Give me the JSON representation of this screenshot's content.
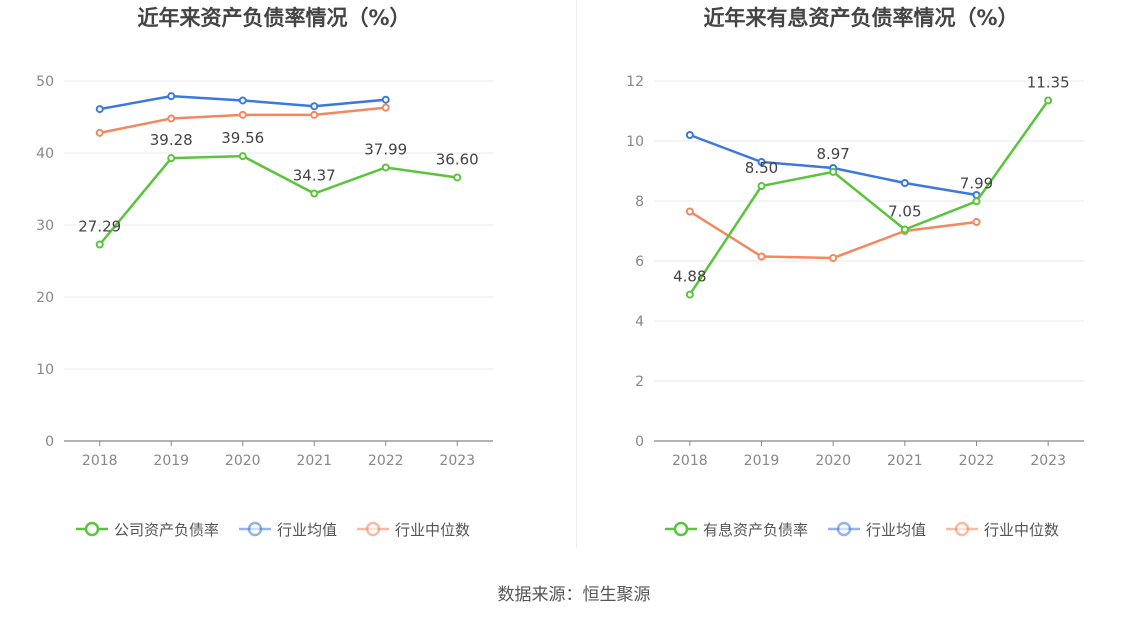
{
  "chart_data": [
    {
      "type": "line",
      "title": "近年来资产负债率情况（%）",
      "categories": [
        "2018",
        "2019",
        "2020",
        "2021",
        "2022",
        "2023"
      ],
      "ylim": [
        0,
        50
      ],
      "yticks": [
        0,
        10,
        20,
        30,
        40,
        50
      ],
      "grid": true,
      "legend_position": "bottom",
      "series": [
        {
          "name": "公司资产负债率",
          "color": "#5ac43c",
          "values": [
            27.29,
            39.28,
            39.56,
            34.37,
            37.99,
            36.6
          ],
          "labels": [
            "27.29",
            "39.28",
            "39.56",
            "34.37",
            "37.99",
            "36.60"
          ]
        },
        {
          "name": "行业均值",
          "color": "#3b78e0",
          "values": [
            46.1,
            47.9,
            47.3,
            46.5,
            47.4,
            null
          ]
        },
        {
          "name": "行业中位数",
          "color": "#f4875e",
          "values": [
            42.8,
            44.8,
            45.3,
            45.3,
            46.3,
            null
          ]
        }
      ]
    },
    {
      "type": "line",
      "title": "近年来有息资产负债率情况（%）",
      "categories": [
        "2018",
        "2019",
        "2020",
        "2021",
        "2022",
        "2023"
      ],
      "ylim": [
        0,
        12
      ],
      "yticks": [
        0,
        2,
        4,
        6,
        8,
        10,
        12
      ],
      "grid": true,
      "legend_position": "bottom",
      "series": [
        {
          "name": "有息资产负债率",
          "color": "#5ac43c",
          "values": [
            4.88,
            8.5,
            8.97,
            7.05,
            7.99,
            11.35
          ],
          "labels": [
            "4.88",
            "8.50",
            "8.97",
            "7.05",
            "7.99",
            "11.35"
          ]
        },
        {
          "name": "行业均值",
          "color": "#3b78e0",
          "values": [
            10.2,
            9.3,
            9.1,
            8.6,
            8.2,
            null
          ]
        },
        {
          "name": "行业中位数",
          "color": "#f4875e",
          "values": [
            7.65,
            6.15,
            6.1,
            7.0,
            7.3,
            null
          ]
        }
      ]
    }
  ],
  "source": "数据来源：恒生聚源"
}
